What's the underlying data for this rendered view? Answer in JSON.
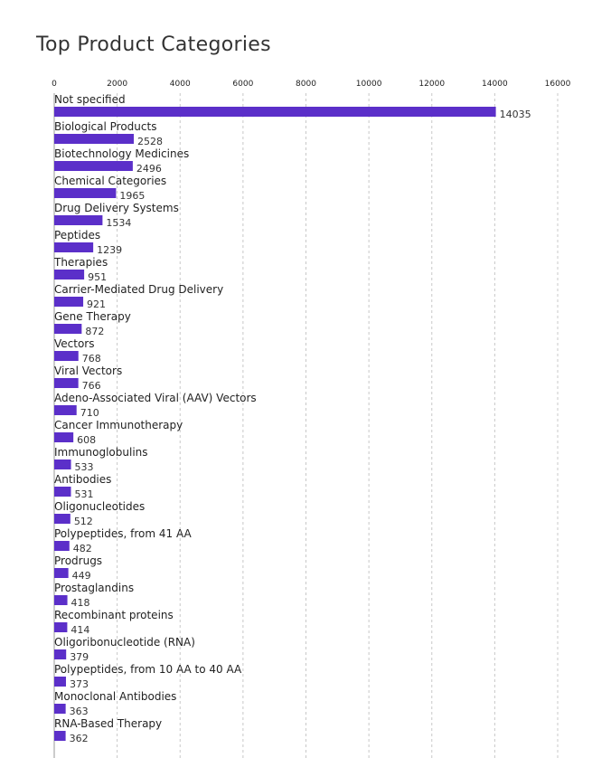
{
  "chart_data": {
    "type": "bar",
    "orientation": "horizontal",
    "title": "Top Product Categories",
    "xlabel": "",
    "ylabel": "",
    "xlim": [
      0,
      16000
    ],
    "xticks": [
      0,
      2000,
      4000,
      6000,
      8000,
      10000,
      12000,
      14000,
      16000
    ],
    "grid": true,
    "bar_color": "#5b2fc9",
    "grid_color": "#c8c8c8",
    "categories": [
      "Not specified",
      "Biological Products",
      "Biotechnology Medicines",
      "Chemical Categories",
      "Drug Delivery Systems",
      "Peptides",
      "Therapies",
      "Carrier-Mediated Drug Delivery",
      "Gene Therapy",
      "Vectors",
      "Viral Vectors",
      "Adeno-Associated Viral (AAV) Vectors",
      "Cancer Immunotherapy",
      "Immunoglobulins",
      "Antibodies",
      "Oligonucleotides",
      "Polypeptides, from 41 AA",
      "Prodrugs",
      "Prostaglandins",
      "Recombinant proteins",
      "Oligoribonucleotide (RNA)",
      "Polypeptides, from 10 AA to 40 AA",
      "Monoclonal Antibodies",
      "RNA-Based Therapy"
    ],
    "values": [
      14035,
      2528,
      2496,
      1965,
      1534,
      1239,
      951,
      921,
      872,
      768,
      766,
      710,
      608,
      533,
      531,
      512,
      482,
      449,
      418,
      414,
      379,
      373,
      363,
      362
    ]
  }
}
